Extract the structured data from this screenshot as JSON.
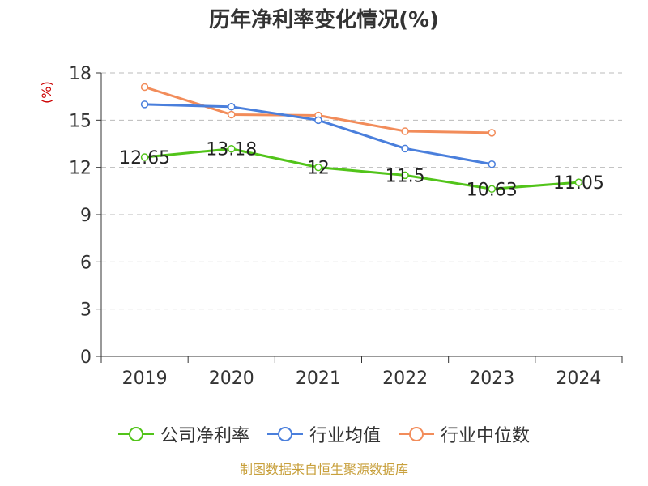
{
  "chart_data": {
    "type": "line",
    "title": "历年净利率变化情况(%)",
    "ylabel": "(%)",
    "categories": [
      "2019",
      "2020",
      "2021",
      "2022",
      "2023",
      "2024"
    ],
    "ylim": [
      0,
      18
    ],
    "yticks": [
      0,
      3,
      6,
      9,
      12,
      15,
      18
    ],
    "grid": true,
    "legend_position": "bottom",
    "series": [
      {
        "name": "公司净利率",
        "color": "#52c41a",
        "values": [
          12.65,
          13.18,
          12,
          11.5,
          10.63,
          11.05
        ],
        "labels": [
          "12.65",
          "13.18",
          "12",
          "11.5",
          "10.63",
          "11.05"
        ]
      },
      {
        "name": "行业均值",
        "color": "#4a7fdc",
        "values": [
          16.0,
          15.85,
          15.0,
          13.2,
          12.2,
          null
        ]
      },
      {
        "name": "行业中位数",
        "color": "#f28c5a",
        "values": [
          17.1,
          15.35,
          15.3,
          14.3,
          14.2,
          null
        ]
      }
    ]
  },
  "footer": "制图数据来自恒生聚源数据库"
}
